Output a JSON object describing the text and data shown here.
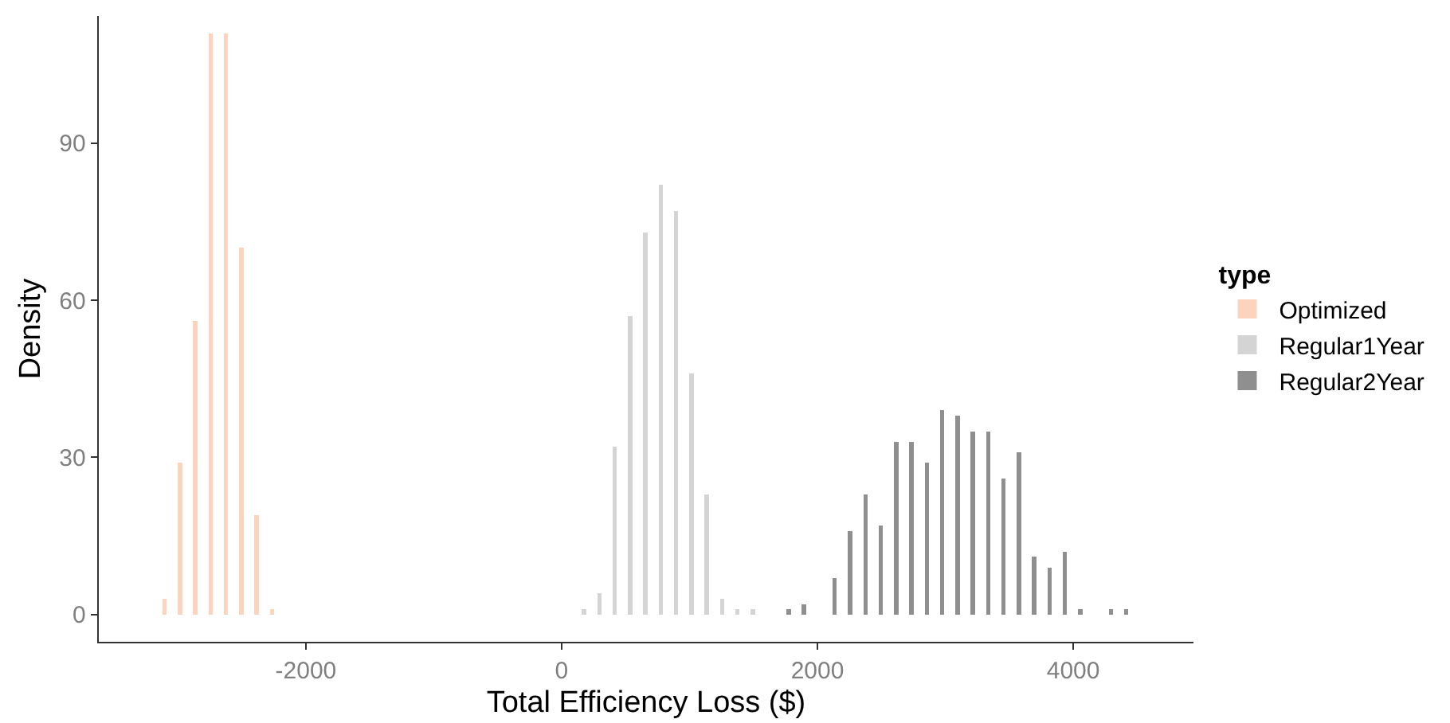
{
  "chart_data": {
    "type": "histogram",
    "xlabel": "Total Efficiency Loss ($)",
    "ylabel": "Density",
    "legend_title": "type",
    "bins": [
      -3125,
      -3005,
      -2885,
      -2765,
      -2645,
      -2525,
      -2405,
      -2285,
      -2165,
      -2045,
      -1925,
      -1805,
      -1685,
      -1565,
      -1445,
      -1325,
      -1205,
      -1085,
      -965,
      -845,
      -725,
      -605,
      -485,
      -365,
      -245,
      -125,
      -5,
      115,
      235,
      355,
      475,
      595,
      715,
      835,
      955,
      1075,
      1195,
      1315,
      1435,
      1555,
      1675,
      1795,
      1915,
      2035,
      2155,
      2275,
      2395,
      2515,
      2635,
      2755,
      2875,
      2995,
      3115,
      3235,
      3355,
      3475,
      3595,
      3715,
      3835,
      3955,
      4075,
      4195,
      4315,
      4435
    ],
    "series": [
      {
        "name": "Optimized",
        "color": "#fcd3bd",
        "values": [
          3,
          29,
          56,
          111,
          111,
          70,
          19,
          1,
          null,
          null,
          null,
          null,
          null,
          null,
          null,
          null,
          null,
          null,
          null,
          null,
          null,
          null,
          null,
          null,
          null,
          null,
          null,
          null,
          null,
          null,
          null,
          null,
          null,
          null,
          null,
          null,
          null,
          null,
          null,
          null,
          null,
          null,
          null,
          null,
          null,
          null,
          null,
          null,
          null,
          null,
          null,
          null,
          null,
          null,
          null,
          null,
          null,
          null,
          null,
          null,
          null,
          null,
          null
        ]
      },
      {
        "name": "Regular1Year",
        "color": "#d4d4d4",
        "values": [
          null,
          null,
          null,
          null,
          null,
          null,
          null,
          null,
          null,
          null,
          null,
          null,
          null,
          null,
          null,
          null,
          null,
          null,
          null,
          null,
          null,
          null,
          null,
          null,
          null,
          null,
          null,
          1,
          4,
          32,
          57,
          73,
          82,
          77,
          46,
          23,
          3,
          1,
          1,
          null,
          null,
          null,
          null,
          null,
          null,
          null,
          null,
          null,
          null,
          null,
          null,
          null,
          null,
          null,
          null,
          null,
          null,
          null,
          null,
          null,
          null,
          null,
          null
        ]
      },
      {
        "name": "Regular2Year",
        "color": "#8f8f8f",
        "values": [
          null,
          null,
          null,
          null,
          null,
          null,
          null,
          null,
          null,
          null,
          null,
          null,
          null,
          null,
          null,
          null,
          null,
          null,
          null,
          null,
          null,
          null,
          null,
          null,
          null,
          null,
          null,
          null,
          null,
          null,
          null,
          null,
          null,
          null,
          null,
          null,
          null,
          null,
          null,
          null,
          1,
          2,
          0,
          7,
          16,
          23,
          17,
          33,
          33,
          29,
          39,
          38,
          35,
          35,
          26,
          31,
          11,
          9,
          12,
          1,
          0,
          1,
          1
        ]
      }
    ],
    "xlim": [
      -3619,
      4940
    ],
    "xticks": [
      -2000,
      0,
      2000,
      4000
    ],
    "ylim": [
      -5.2,
      114.3
    ],
    "yticks": [
      0,
      30,
      60,
      90
    ],
    "grid": false,
    "legend": "right"
  }
}
